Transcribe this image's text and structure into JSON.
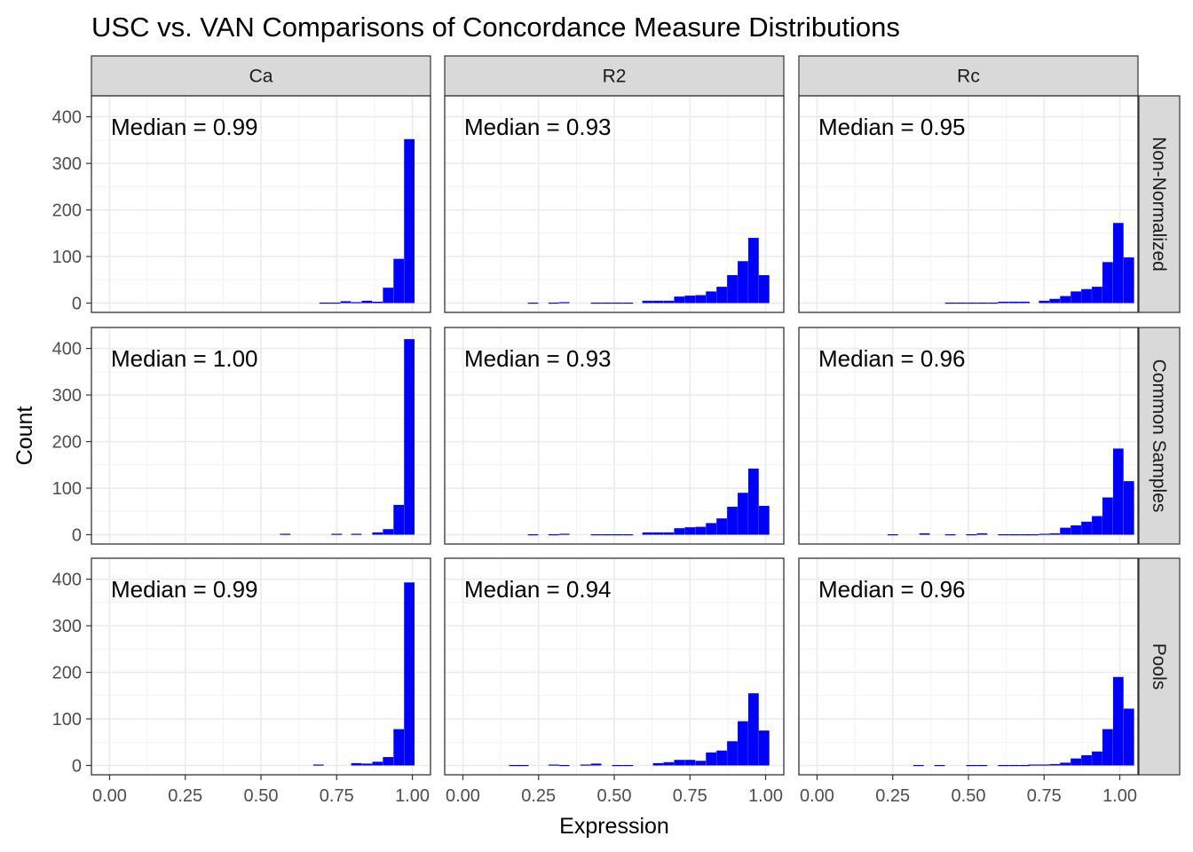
{
  "chart_data": {
    "type": "bar",
    "subtype": "faceted-histogram",
    "title": "USC vs. VAN Comparisons of Concordance Measure Distributions",
    "xlabel": "Expression",
    "ylabel": "Count",
    "xlim": [
      -0.06,
      1.06
    ],
    "ylim": [
      -20,
      445
    ],
    "xticks": [
      0.0,
      0.25,
      0.5,
      0.75,
      1.0
    ],
    "xtick_labels": [
      "0.00",
      "0.25",
      "0.50",
      "0.75",
      "1.00"
    ],
    "yticks": [
      0,
      100,
      200,
      300,
      400
    ],
    "ytick_labels": [
      "0",
      "100",
      "200",
      "300",
      "400"
    ],
    "bar_color": "#0000ff",
    "grid": true,
    "col_facets": [
      "Ca",
      "R2",
      "Rc"
    ],
    "row_facets": [
      "Non-Normalized",
      "Common Samples",
      "Pools"
    ],
    "bin_width": 0.0345,
    "panels": [
      {
        "row": "Non-Normalized",
        "col": "Ca",
        "label": "Median = 0.99",
        "bins": [
          [
            0.71,
            1
          ],
          [
            0.745,
            1
          ],
          [
            0.78,
            4
          ],
          [
            0.815,
            2
          ],
          [
            0.85,
            5
          ],
          [
            0.885,
            3
          ],
          [
            0.92,
            33
          ],
          [
            0.955,
            95
          ],
          [
            0.99,
            352
          ]
        ]
      },
      {
        "row": "Non-Normalized",
        "col": "R2",
        "label": "Median = 0.93",
        "bins": [
          [
            0.232,
            1
          ],
          [
            0.3,
            1
          ],
          [
            0.335,
            2
          ],
          [
            0.44,
            1
          ],
          [
            0.475,
            1
          ],
          [
            0.51,
            1
          ],
          [
            0.545,
            1
          ],
          [
            0.61,
            5
          ],
          [
            0.645,
            5
          ],
          [
            0.68,
            5
          ],
          [
            0.715,
            14
          ],
          [
            0.75,
            16
          ],
          [
            0.785,
            17
          ],
          [
            0.82,
            25
          ],
          [
            0.855,
            35
          ],
          [
            0.89,
            60
          ],
          [
            0.925,
            90
          ],
          [
            0.96,
            140
          ],
          [
            0.995,
            60
          ]
        ]
      },
      {
        "row": "Non-Normalized",
        "col": "Rc",
        "label": "Median = 0.95",
        "bins": [
          [
            0.44,
            1
          ],
          [
            0.475,
            1
          ],
          [
            0.51,
            1
          ],
          [
            0.545,
            1
          ],
          [
            0.58,
            1
          ],
          [
            0.615,
            3
          ],
          [
            0.65,
            3
          ],
          [
            0.685,
            3
          ],
          [
            0.75,
            5
          ],
          [
            0.785,
            9
          ],
          [
            0.82,
            15
          ],
          [
            0.855,
            25
          ],
          [
            0.89,
            30
          ],
          [
            0.925,
            35
          ],
          [
            0.96,
            88
          ],
          [
            0.995,
            172
          ],
          [
            1.03,
            98
          ]
        ]
      },
      {
        "row": "Common Samples",
        "col": "Ca",
        "label": "Median = 1.00",
        "bins": [
          [
            0.58,
            2
          ],
          [
            0.75,
            2
          ],
          [
            0.815,
            2
          ],
          [
            0.885,
            5
          ],
          [
            0.92,
            12
          ],
          [
            0.955,
            64
          ],
          [
            0.99,
            420
          ]
        ]
      },
      {
        "row": "Common Samples",
        "col": "R2",
        "label": "Median = 0.93",
        "bins": [
          [
            0.232,
            1
          ],
          [
            0.3,
            1
          ],
          [
            0.335,
            2
          ],
          [
            0.44,
            1
          ],
          [
            0.475,
            1
          ],
          [
            0.51,
            1
          ],
          [
            0.545,
            1
          ],
          [
            0.61,
            5
          ],
          [
            0.645,
            5
          ],
          [
            0.68,
            5
          ],
          [
            0.715,
            14
          ],
          [
            0.75,
            16
          ],
          [
            0.785,
            17
          ],
          [
            0.82,
            25
          ],
          [
            0.855,
            35
          ],
          [
            0.89,
            60
          ],
          [
            0.925,
            90
          ],
          [
            0.96,
            142
          ],
          [
            0.995,
            62
          ]
        ]
      },
      {
        "row": "Common Samples",
        "col": "Rc",
        "label": "Median = 0.96",
        "bins": [
          [
            0.25,
            1
          ],
          [
            0.355,
            3
          ],
          [
            0.44,
            1
          ],
          [
            0.51,
            1
          ],
          [
            0.545,
            3
          ],
          [
            0.615,
            1
          ],
          [
            0.65,
            1
          ],
          [
            0.685,
            1
          ],
          [
            0.715,
            1
          ],
          [
            0.75,
            2
          ],
          [
            0.785,
            3
          ],
          [
            0.82,
            15
          ],
          [
            0.855,
            20
          ],
          [
            0.89,
            28
          ],
          [
            0.925,
            40
          ],
          [
            0.96,
            80
          ],
          [
            0.995,
            185
          ],
          [
            1.03,
            115
          ]
        ]
      },
      {
        "row": "Pools",
        "col": "Ca",
        "label": "Median = 0.99",
        "bins": [
          [
            0.69,
            2
          ],
          [
            0.815,
            5
          ],
          [
            0.85,
            4
          ],
          [
            0.885,
            8
          ],
          [
            0.92,
            18
          ],
          [
            0.955,
            78
          ],
          [
            0.99,
            393
          ]
        ]
      },
      {
        "row": "Pools",
        "col": "R2",
        "label": "Median = 0.94",
        "bins": [
          [
            0.17,
            1
          ],
          [
            0.2,
            1
          ],
          [
            0.3,
            2
          ],
          [
            0.335,
            1
          ],
          [
            0.405,
            2
          ],
          [
            0.44,
            4
          ],
          [
            0.51,
            1
          ],
          [
            0.545,
            1
          ],
          [
            0.645,
            5
          ],
          [
            0.68,
            7
          ],
          [
            0.715,
            12
          ],
          [
            0.75,
            12
          ],
          [
            0.785,
            10
          ],
          [
            0.82,
            28
          ],
          [
            0.855,
            32
          ],
          [
            0.89,
            52
          ],
          [
            0.925,
            95
          ],
          [
            0.96,
            155
          ],
          [
            0.995,
            75
          ]
        ]
      },
      {
        "row": "Pools",
        "col": "Rc",
        "label": "Median = 0.96",
        "bins": [
          [
            0.335,
            1
          ],
          [
            0.405,
            1
          ],
          [
            0.51,
            1
          ],
          [
            0.545,
            1
          ],
          [
            0.615,
            1
          ],
          [
            0.65,
            1
          ],
          [
            0.685,
            1
          ],
          [
            0.715,
            2
          ],
          [
            0.75,
            2
          ],
          [
            0.785,
            3
          ],
          [
            0.82,
            6
          ],
          [
            0.855,
            15
          ],
          [
            0.89,
            22
          ],
          [
            0.925,
            30
          ],
          [
            0.96,
            78
          ],
          [
            0.995,
            190
          ],
          [
            1.03,
            122
          ]
        ]
      }
    ]
  }
}
